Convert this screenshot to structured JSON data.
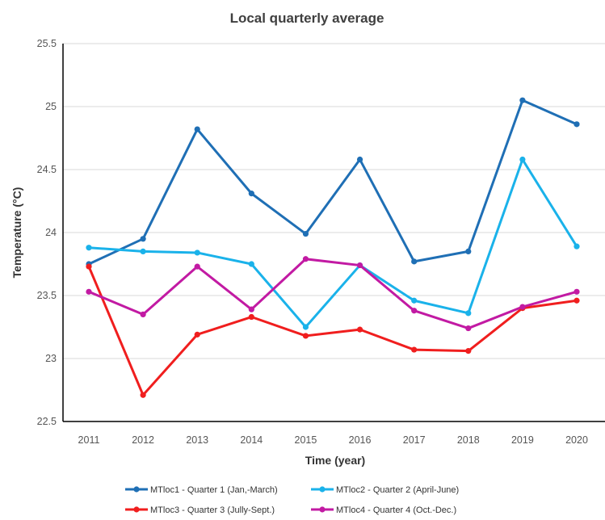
{
  "chart_data": {
    "type": "line",
    "title": "Local quarterly average",
    "xlabel": "Time (year)",
    "ylabel": "Temperature (°C)",
    "ylim": [
      22.5,
      25.5
    ],
    "yticks": [
      "22.5",
      "23",
      "23.5",
      "24",
      "24.5",
      "25",
      "25.5"
    ],
    "categories": [
      "2011",
      "2012",
      "2013",
      "2014",
      "2015",
      "2016",
      "2017",
      "2018",
      "2019",
      "2020"
    ],
    "grid": "horizontal",
    "legend_position": "bottom",
    "series": [
      {
        "name": "MTloc1 - Quarter 1 (Jan,-March)",
        "color": "#1f6fb5",
        "values": [
          23.75,
          23.95,
          24.82,
          24.31,
          23.99,
          24.58,
          23.77,
          23.85,
          25.05,
          24.86
        ]
      },
      {
        "name": "MTloc2 - Quarter 2 (April-June)",
        "color": "#1ab2ea",
        "values": [
          23.88,
          23.85,
          23.84,
          23.75,
          23.25,
          23.74,
          23.46,
          23.36,
          24.58,
          23.89
        ]
      },
      {
        "name": "MTloc3 - Quarter 3 (Jully-Sept.)",
        "color": "#f01e1e",
        "values": [
          23.73,
          22.71,
          23.19,
          23.33,
          23.18,
          23.23,
          23.07,
          23.06,
          23.4,
          23.46
        ]
      },
      {
        "name": "MTloc4 - Quarter 4 (Oct.-Dec.)",
        "color": "#c21aa3",
        "values": [
          23.53,
          23.35,
          23.73,
          23.39,
          23.79,
          23.74,
          23.38,
          23.24,
          23.41,
          23.53
        ]
      }
    ]
  }
}
